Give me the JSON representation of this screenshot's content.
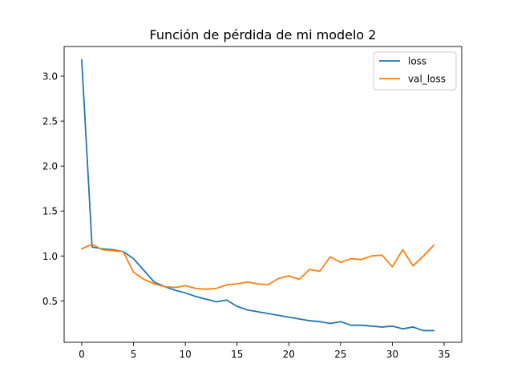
{
  "chart_data": {
    "type": "line",
    "title": "Función de pérdida de mi modelo 2",
    "xlabel": "",
    "ylabel": "",
    "xlim": [
      -1.7,
      36.7
    ],
    "ylim": [
      0.04,
      3.33
    ],
    "xticks": [
      0,
      5,
      10,
      15,
      20,
      25,
      30,
      35
    ],
    "yticks": [
      0.5,
      1.0,
      1.5,
      2.0,
      2.5,
      3.0
    ],
    "ytick_labels": [
      "0.5",
      "1.0",
      "1.5",
      "2.0",
      "2.5",
      "3.0"
    ],
    "grid": false,
    "legend_position": "top-right",
    "x": [
      0,
      1,
      2,
      3,
      4,
      5,
      6,
      7,
      8,
      9,
      10,
      11,
      12,
      13,
      14,
      15,
      16,
      17,
      18,
      19,
      20,
      21,
      22,
      23,
      24,
      25,
      26,
      27,
      28,
      29,
      30,
      31,
      32,
      33,
      34
    ],
    "series": [
      {
        "name": "loss",
        "color": "#1f77b4",
        "values": [
          3.18,
          1.1,
          1.08,
          1.07,
          1.05,
          0.97,
          0.84,
          0.71,
          0.66,
          0.62,
          0.59,
          0.55,
          0.52,
          0.49,
          0.51,
          0.44,
          0.4,
          0.38,
          0.36,
          0.34,
          0.32,
          0.3,
          0.28,
          0.27,
          0.25,
          0.27,
          0.23,
          0.23,
          0.22,
          0.21,
          0.22,
          0.19,
          0.21,
          0.17,
          0.17
        ]
      },
      {
        "name": "val_loss",
        "color": "#ff7f0e",
        "values": [
          1.08,
          1.13,
          1.07,
          1.06,
          1.05,
          0.82,
          0.74,
          0.69,
          0.66,
          0.65,
          0.67,
          0.64,
          0.63,
          0.64,
          0.68,
          0.69,
          0.71,
          0.69,
          0.68,
          0.75,
          0.78,
          0.74,
          0.85,
          0.83,
          0.99,
          0.93,
          0.97,
          0.96,
          1.0,
          1.01,
          0.88,
          1.07,
          0.89,
          1.0,
          1.12
        ]
      }
    ]
  }
}
